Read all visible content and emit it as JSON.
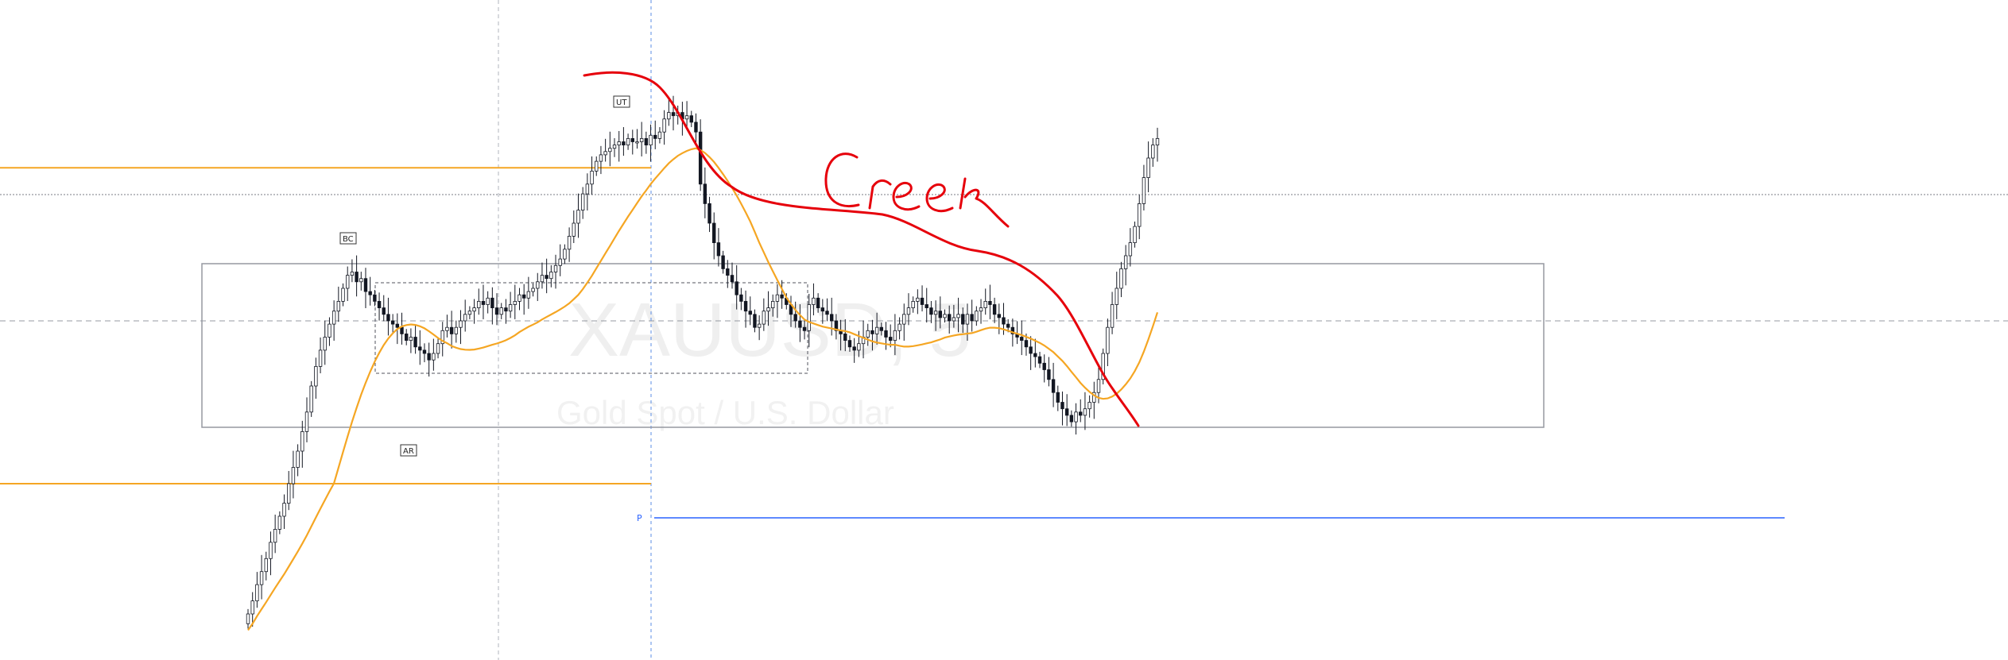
{
  "watermark": {
    "symbol": "XAUUSD, 5",
    "description": "Gold Spot / U.S. Dollar"
  },
  "event_labels": [
    "BC",
    "AR",
    "UT"
  ],
  "pivot_label": "P",
  "annotation": "Creek",
  "colors": {
    "candle": "#131722",
    "moving_average": "#f5a623",
    "horizontal_levels": "#f5a623",
    "range_box": "#9598a1",
    "pivot_line": "#2962ff",
    "annotation": "#e6000b",
    "grid": "#b2b5be"
  },
  "chart_data": {
    "type": "candlestick",
    "title": "",
    "symbol": "XAUUSD",
    "timeframe": "5",
    "grid": true,
    "axes_visible": false,
    "series": [
      {
        "name": "",
        "kind": "candles",
        "close": [
          -9.0,
          -8.6,
          -8.1,
          -7.7,
          -7.3,
          -6.8,
          -6.4,
          -6.0,
          -5.6,
          -5.0,
          -4.5,
          -4.0,
          -3.4,
          -2.8,
          -2.0,
          -1.4,
          -0.9,
          -0.5,
          -0.1,
          0.3,
          0.6,
          1.0,
          1.4,
          1.5,
          1.2,
          1.3,
          0.9,
          0.8,
          0.6,
          0.4,
          0.2,
          0.0,
          -0.1,
          -0.2,
          -0.4,
          -0.6,
          -0.5,
          -0.8,
          -0.9,
          -1.0,
          -1.2,
          -1.0,
          -0.7,
          -0.3,
          -0.2,
          -0.4,
          -0.2,
          0.0,
          0.2,
          0.3,
          0.4,
          0.6,
          0.5,
          0.7,
          0.4,
          0.2,
          0.4,
          0.3,
          0.5,
          0.6,
          0.8,
          0.7,
          0.9,
          1.0,
          1.2,
          1.4,
          1.3,
          1.5,
          1.7,
          1.9,
          2.2,
          2.6,
          3.0,
          3.4,
          3.9,
          4.2,
          4.6,
          4.9,
          5.1,
          5.2,
          5.3,
          5.4,
          5.5,
          5.4,
          5.6,
          5.5,
          5.5,
          5.6,
          5.4,
          5.7,
          5.6,
          5.8,
          6.2,
          6.4,
          6.3,
          6.4,
          6.2,
          6.3,
          6.1,
          5.8,
          4.2,
          3.6,
          3.0,
          2.4,
          2.0,
          1.6,
          1.4,
          1.2,
          0.8,
          0.6,
          0.3,
          0.2,
          -0.2,
          -0.1,
          0.3,
          0.4,
          0.6,
          0.8,
          0.7,
          0.5,
          0.2,
          0.0,
          -0.2,
          -0.3,
          0.5,
          0.7,
          0.4,
          0.3,
          0.2,
          0.0,
          -0.3,
          -0.4,
          -0.6,
          -0.8,
          -0.9,
          -0.7,
          -0.5,
          -0.3,
          -0.4,
          -0.2,
          -0.3,
          -0.5,
          -0.6,
          -0.3,
          -0.1,
          0.2,
          0.4,
          0.6,
          0.7,
          0.5,
          0.4,
          0.2,
          0.3,
          0.1,
          0.2,
          0.0,
          0.1,
          0.2,
          -0.1,
          0.2,
          0.0,
          0.3,
          0.4,
          0.6,
          0.5,
          0.2,
          0.1,
          -0.1,
          -0.2,
          -0.4,
          -0.5,
          -0.6,
          -0.8,
          -1.0,
          -1.1,
          -1.3,
          -1.5,
          -1.8,
          -2.2,
          -2.5,
          -2.7,
          -2.9,
          -3.1,
          -2.8,
          -2.9,
          -2.7,
          -2.5,
          -2.2,
          -1.8,
          -1.0,
          -0.2,
          0.5,
          1.0,
          1.6,
          2.0,
          2.4,
          2.9,
          3.6,
          4.4,
          5.0,
          5.4,
          5.6
        ]
      },
      {
        "name": "",
        "kind": "moving-average",
        "period": 20
      }
    ],
    "horizontal_levels": [
      4.7,
      -5.0
    ],
    "range_box": {
      "top": 1.8,
      "bottom": -3.2
    },
    "pivot_level": -6.3,
    "dashed_inner_box": {
      "top": 1.2,
      "bottom": -1.8
    }
  }
}
